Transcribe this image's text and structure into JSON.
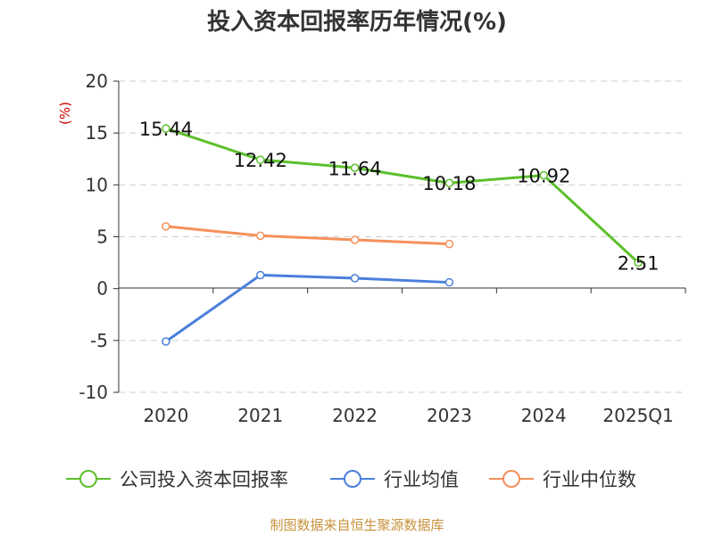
{
  "chart_data": {
    "type": "line",
    "title": "投入资本回报率历年情况(%)",
    "unit": "(%)",
    "categories": [
      "2020",
      "2021",
      "2022",
      "2023",
      "2024",
      "2025Q1"
    ],
    "ylim": [
      -10,
      20
    ],
    "yticks": [
      -10,
      -5,
      0,
      5,
      10,
      15,
      20
    ],
    "grid": true,
    "legend_position": "bottom",
    "series": [
      {
        "name": "公司投入资本回报率",
        "color": "#5cc02c",
        "values": [
          15.44,
          12.42,
          11.64,
          10.18,
          10.92,
          2.51
        ],
        "labels": [
          "15.44",
          "12.42",
          "11.64",
          "10.18",
          "10.92",
          "2.51"
        ]
      },
      {
        "name": "行业均值",
        "color": "#4a7fdc",
        "values": [
          -5.1,
          1.3,
          1.0,
          0.6,
          null,
          null
        ]
      },
      {
        "name": "行业中位数",
        "color": "#f5905a",
        "values": [
          6.0,
          5.1,
          4.7,
          4.3,
          null,
          null
        ]
      }
    ]
  },
  "source": "制图数据来自恒生聚源数据库"
}
